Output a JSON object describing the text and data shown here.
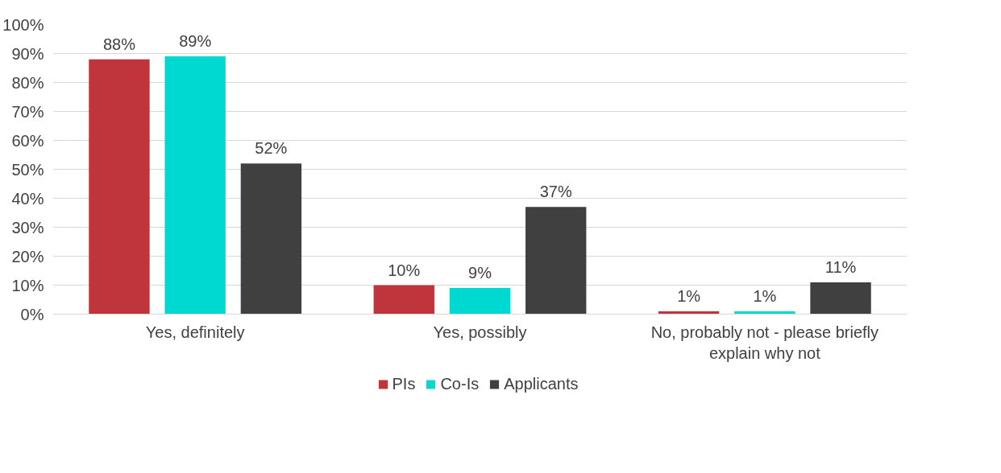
{
  "chart_data": {
    "type": "bar",
    "categories": [
      "Yes, definitely",
      "Yes, possibly",
      "No, probably not - please briefly explain why not"
    ],
    "series": [
      {
        "name": "PIs",
        "color": "#c0343c",
        "values": [
          88,
          10,
          1
        ]
      },
      {
        "name": "Co-Is",
        "color": "#00d9d2",
        "values": [
          89,
          9,
          1
        ]
      },
      {
        "name": "Applicants",
        "color": "#404040",
        "values": [
          52,
          37,
          11
        ]
      }
    ],
    "ylim": [
      0,
      100
    ],
    "yticks": [
      {
        "value": 0,
        "label": "0%"
      },
      {
        "value": 10,
        "label": "10%"
      },
      {
        "value": 20,
        "label": "20%"
      },
      {
        "value": 30,
        "label": "30%"
      },
      {
        "value": 40,
        "label": "40%"
      },
      {
        "value": 50,
        "label": "50%"
      },
      {
        "value": 60,
        "label": "60%"
      },
      {
        "value": 70,
        "label": "70%"
      },
      {
        "value": 80,
        "label": "80%"
      },
      {
        "value": 90,
        "label": "90%"
      },
      {
        "value": 100,
        "label": "100%"
      }
    ],
    "value_labels": [
      [
        "88%",
        "10%",
        "1%"
      ],
      [
        "89%",
        "9%",
        "1%"
      ],
      [
        "52%",
        "37%",
        "11%"
      ]
    ],
    "grid": "y",
    "legend": "bottom"
  }
}
